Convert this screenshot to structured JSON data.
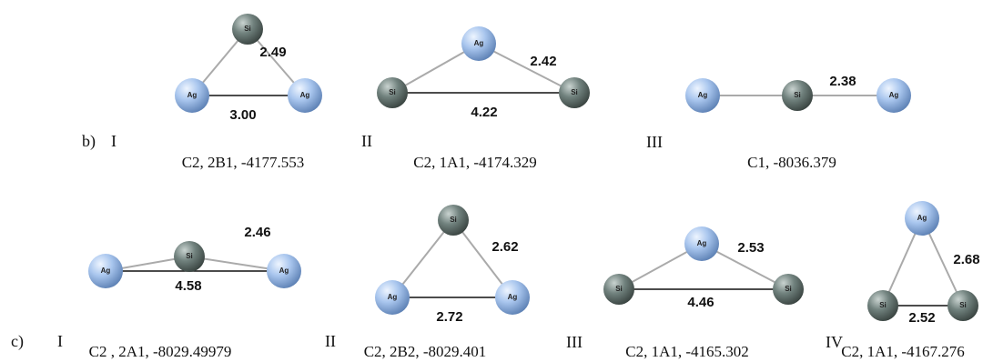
{
  "rows": [
    {
      "label": "b)",
      "structures": [
        {
          "numeral": "I",
          "atoms": [
            "Si",
            "Ag",
            "Ag"
          ],
          "bond_labels": [
            "2.49",
            "3.00"
          ],
          "caption": "C2, 2B1, -4177.553"
        },
        {
          "numeral": "II",
          "atoms": [
            "Ag",
            "Si",
            "Si"
          ],
          "bond_labels": [
            "2.42",
            "4.22"
          ],
          "caption": "C2, 1A1, -4174.329"
        },
        {
          "numeral": "III",
          "atoms": [
            "Ag",
            "Si",
            "Ag"
          ],
          "bond_labels": [
            "2.38"
          ],
          "caption": "C1, -8036.379"
        }
      ]
    },
    {
      "label": "c)",
      "structures": [
        {
          "numeral": "I",
          "atoms": [
            "Si",
            "Ag",
            "Ag"
          ],
          "bond_labels": [
            "2.46",
            "4.58"
          ],
          "caption": "C2 , 2A1, -8029.49979"
        },
        {
          "numeral": "II",
          "atoms": [
            "Si",
            "Ag",
            "Ag"
          ],
          "bond_labels": [
            "2.62",
            "2.72"
          ],
          "caption": "C2, 2B2, -8029.401"
        },
        {
          "numeral": "III",
          "atoms": [
            "Ag",
            "Si",
            "Si"
          ],
          "bond_labels": [
            "2.53",
            "4.46"
          ],
          "caption": "C2, 1A1, -4165.302"
        },
        {
          "numeral": "IV",
          "atoms": [
            "Ag",
            "Si",
            "Si"
          ],
          "bond_labels": [
            "2.68",
            "2.52"
          ],
          "caption": "C2, 1A1, -4167.276"
        }
      ]
    }
  ]
}
